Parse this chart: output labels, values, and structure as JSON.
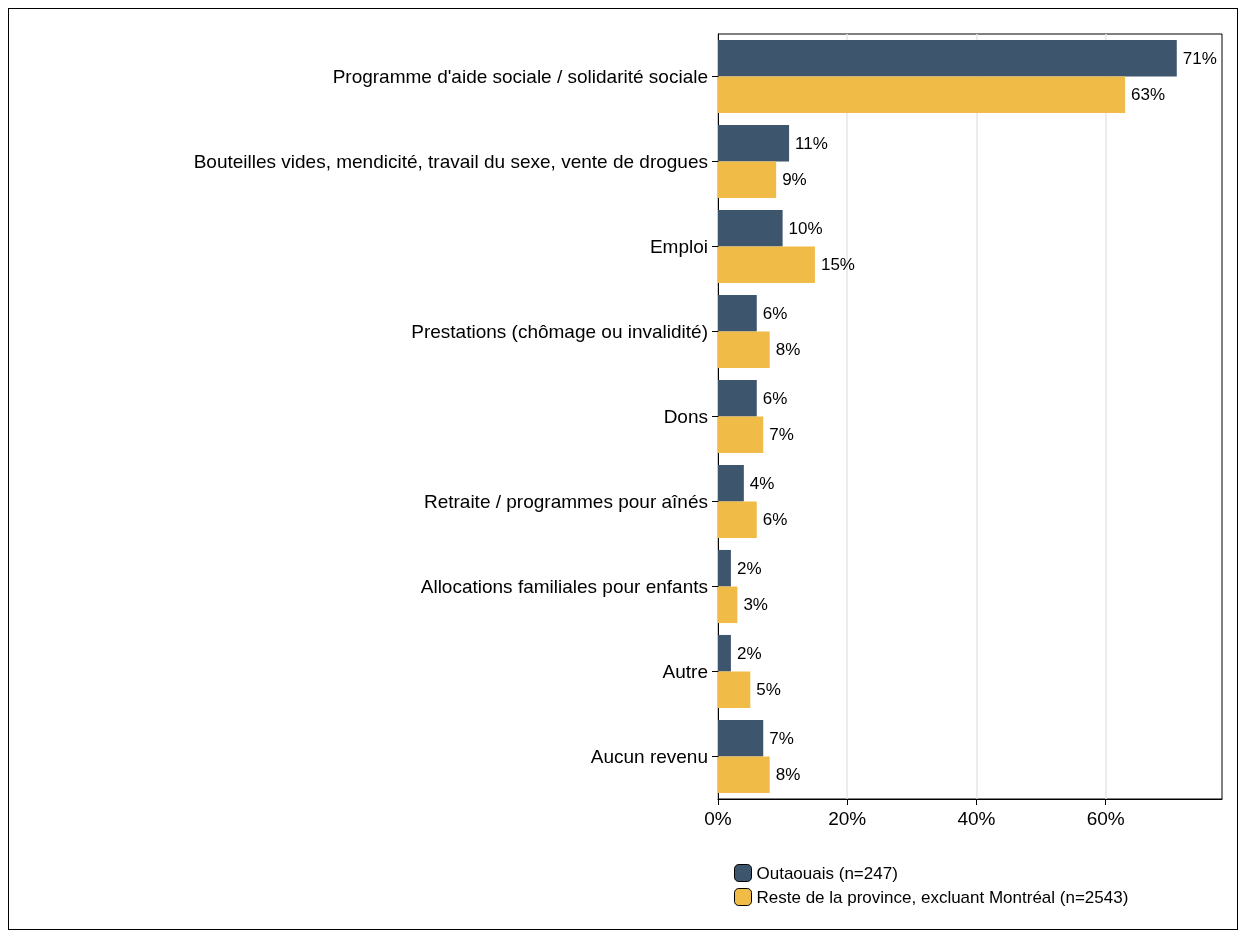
{
  "chart_data": {
    "type": "bar",
    "orientation": "horizontal",
    "categories": [
      "Programme d'aide sociale / solidarité sociale",
      "Bouteilles vides, mendicité, travail du sexe, vente de drogues",
      "Emploi",
      "Prestations (chômage ou invalidité)",
      "Dons",
      "Retraite / programmes pour aînés",
      "Allocations familiales pour enfants",
      "Autre",
      "Aucun revenu"
    ],
    "series": [
      {
        "name": "Outaouais (n=247)",
        "color": "#3d566e",
        "values": [
          71,
          11,
          10,
          6,
          6,
          4,
          2,
          2,
          7
        ],
        "value_labels": [
          "71%",
          "11%",
          "10%",
          "6%",
          "6%",
          "4%",
          "2%",
          "2%",
          "7%"
        ]
      },
      {
        "name": "Reste de la province, excluant Montréal (n=2543)",
        "color": "#f0bb47",
        "values": [
          63,
          9,
          15,
          8,
          7,
          6,
          3,
          5,
          8
        ],
        "value_labels": [
          "63%",
          "9%",
          "15%",
          "8%",
          "7%",
          "6%",
          "3%",
          "5%",
          "8%"
        ]
      }
    ],
    "xlim": [
      0,
      78
    ],
    "xticks": [
      {
        "value": 0,
        "label": "0%"
      },
      {
        "value": 20,
        "label": "20%"
      },
      {
        "value": 40,
        "label": "40%"
      },
      {
        "value": 60,
        "label": "60%"
      }
    ],
    "grid": "x",
    "legend": "bottom"
  }
}
